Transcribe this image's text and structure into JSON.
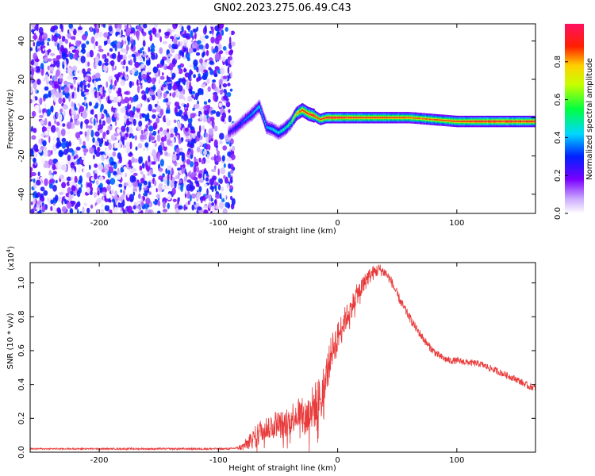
{
  "title": "GN02.2023.275.06.49.C43",
  "chart_data": [
    {
      "type": "heatmap",
      "xlabel": "Height of straight line (km)",
      "ylabel": "Frequency (Hz)",
      "xlim": [
        -258,
        166
      ],
      "ylim": [
        -50,
        49
      ],
      "xticks": [
        -200,
        -100,
        0,
        100
      ],
      "yticks": [
        -40,
        -20,
        0,
        20,
        40
      ],
      "noise_region_x": [
        -258,
        -90
      ],
      "noise_amplitude_range": [
        0.0,
        0.35
      ],
      "ridge": {
        "x": [
          -92,
          -85,
          -78,
          -72,
          -66,
          -60,
          -55,
          -50,
          -45,
          -40,
          -35,
          -30,
          -25,
          -20,
          -15,
          -10,
          0,
          20,
          40,
          60,
          80,
          100,
          120,
          140,
          166
        ],
        "frequency": [
          -8,
          -5,
          -1,
          2,
          6,
          -5,
          -6,
          -8,
          -6,
          -3,
          2,
          4,
          2,
          1,
          -1,
          0,
          0,
          0,
          0,
          0,
          -1,
          -2,
          -2,
          -2,
          -2
        ],
        "amplitude": [
          0.25,
          0.3,
          0.35,
          0.4,
          0.45,
          0.4,
          0.45,
          0.45,
          0.5,
          0.55,
          0.8,
          0.9,
          0.9,
          0.95,
          0.9,
          0.95,
          0.95,
          0.9,
          0.9,
          0.85,
          0.85,
          0.9,
          0.95,
          0.95,
          0.95
        ]
      },
      "colorbar": {
        "label": "Normalized spectral amplitude",
        "range": [
          0.0,
          1.0
        ],
        "ticks": [
          "0.0",
          "0.2",
          "0.4",
          "0.6",
          "0.8"
        ],
        "colormap": "rainbow"
      }
    },
    {
      "type": "line",
      "xlabel": "Height of straight line (km)",
      "ylabel": "SNR (10 * v/v)",
      "scale_label": "(x10",
      "scale_exponent": "4",
      "scale_suffix": ")",
      "xlim": [
        -258,
        166
      ],
      "ylim": [
        0.0,
        1.12
      ],
      "xticks": [
        -200,
        -100,
        0,
        100
      ],
      "yticks": [
        0.0,
        0.2,
        0.4,
        0.6,
        0.8,
        1.0
      ],
      "ytick_labels": [
        "0.0",
        "0.2",
        "0.4",
        "0.6",
        "0.8",
        "1.0"
      ],
      "line_color": "#e83a3a",
      "envelope": {
        "x": [
          -258,
          -150,
          -90,
          -80,
          -72,
          -65,
          -58,
          -52,
          -46,
          -40,
          -34,
          -28,
          -22,
          -16,
          -10,
          -5,
          0,
          5,
          10,
          15,
          20,
          25,
          30,
          35,
          40,
          45,
          50,
          55,
          60,
          65,
          70,
          75,
          80,
          85,
          90,
          95,
          100,
          110,
          120,
          130,
          140,
          150,
          160,
          166
        ],
        "y": [
          0.02,
          0.02,
          0.02,
          0.03,
          0.07,
          0.13,
          0.15,
          0.17,
          0.16,
          0.19,
          0.24,
          0.19,
          0.25,
          0.31,
          0.44,
          0.6,
          0.68,
          0.77,
          0.83,
          0.92,
          0.97,
          1.03,
          1.06,
          1.08,
          1.06,
          1.01,
          0.93,
          0.86,
          0.8,
          0.74,
          0.69,
          0.64,
          0.6,
          0.57,
          0.55,
          0.54,
          0.54,
          0.53,
          0.52,
          0.49,
          0.46,
          0.43,
          0.39,
          0.38
        ]
      },
      "noise_amplitude": {
        "x": [
          -258,
          -85,
          -70,
          -40,
          -20,
          -5,
          10,
          40,
          100,
          166
        ],
        "y": [
          0.004,
          0.006,
          0.06,
          0.09,
          0.14,
          0.1,
          0.07,
          0.03,
          0.02,
          0.02
        ]
      }
    }
  ]
}
